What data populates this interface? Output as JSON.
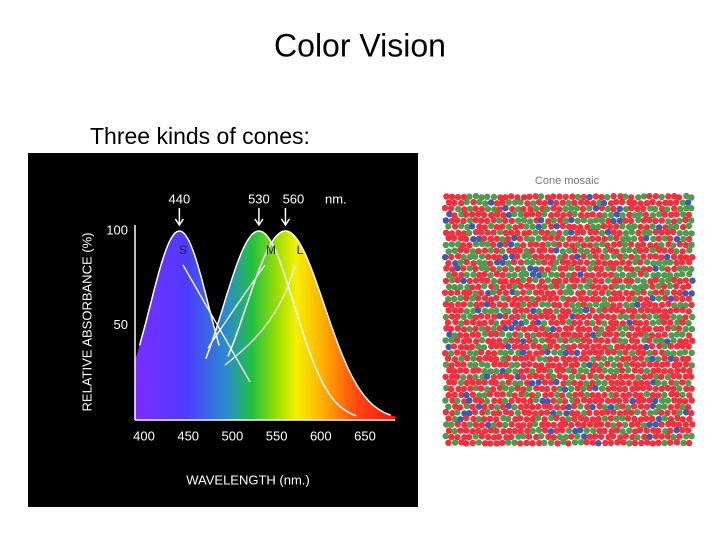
{
  "slide": {
    "title": "Color Vision",
    "bullet": "Three kinds of cones:"
  },
  "figure": {
    "peaks": [
      440,
      530,
      560
    ],
    "peak_unit": "nm.",
    "cone_labels": [
      "S",
      "M",
      "L"
    ],
    "y_axis_label": "RELATIVE ABSORBANCE (%)",
    "x_axis_label": "WAVELENGTH (nm.)",
    "yticks": [
      100,
      50
    ],
    "xticks": [
      400,
      450,
      500,
      550,
      600,
      650
    ]
  },
  "mosaic": {
    "title": "Cone mosaic"
  }
}
